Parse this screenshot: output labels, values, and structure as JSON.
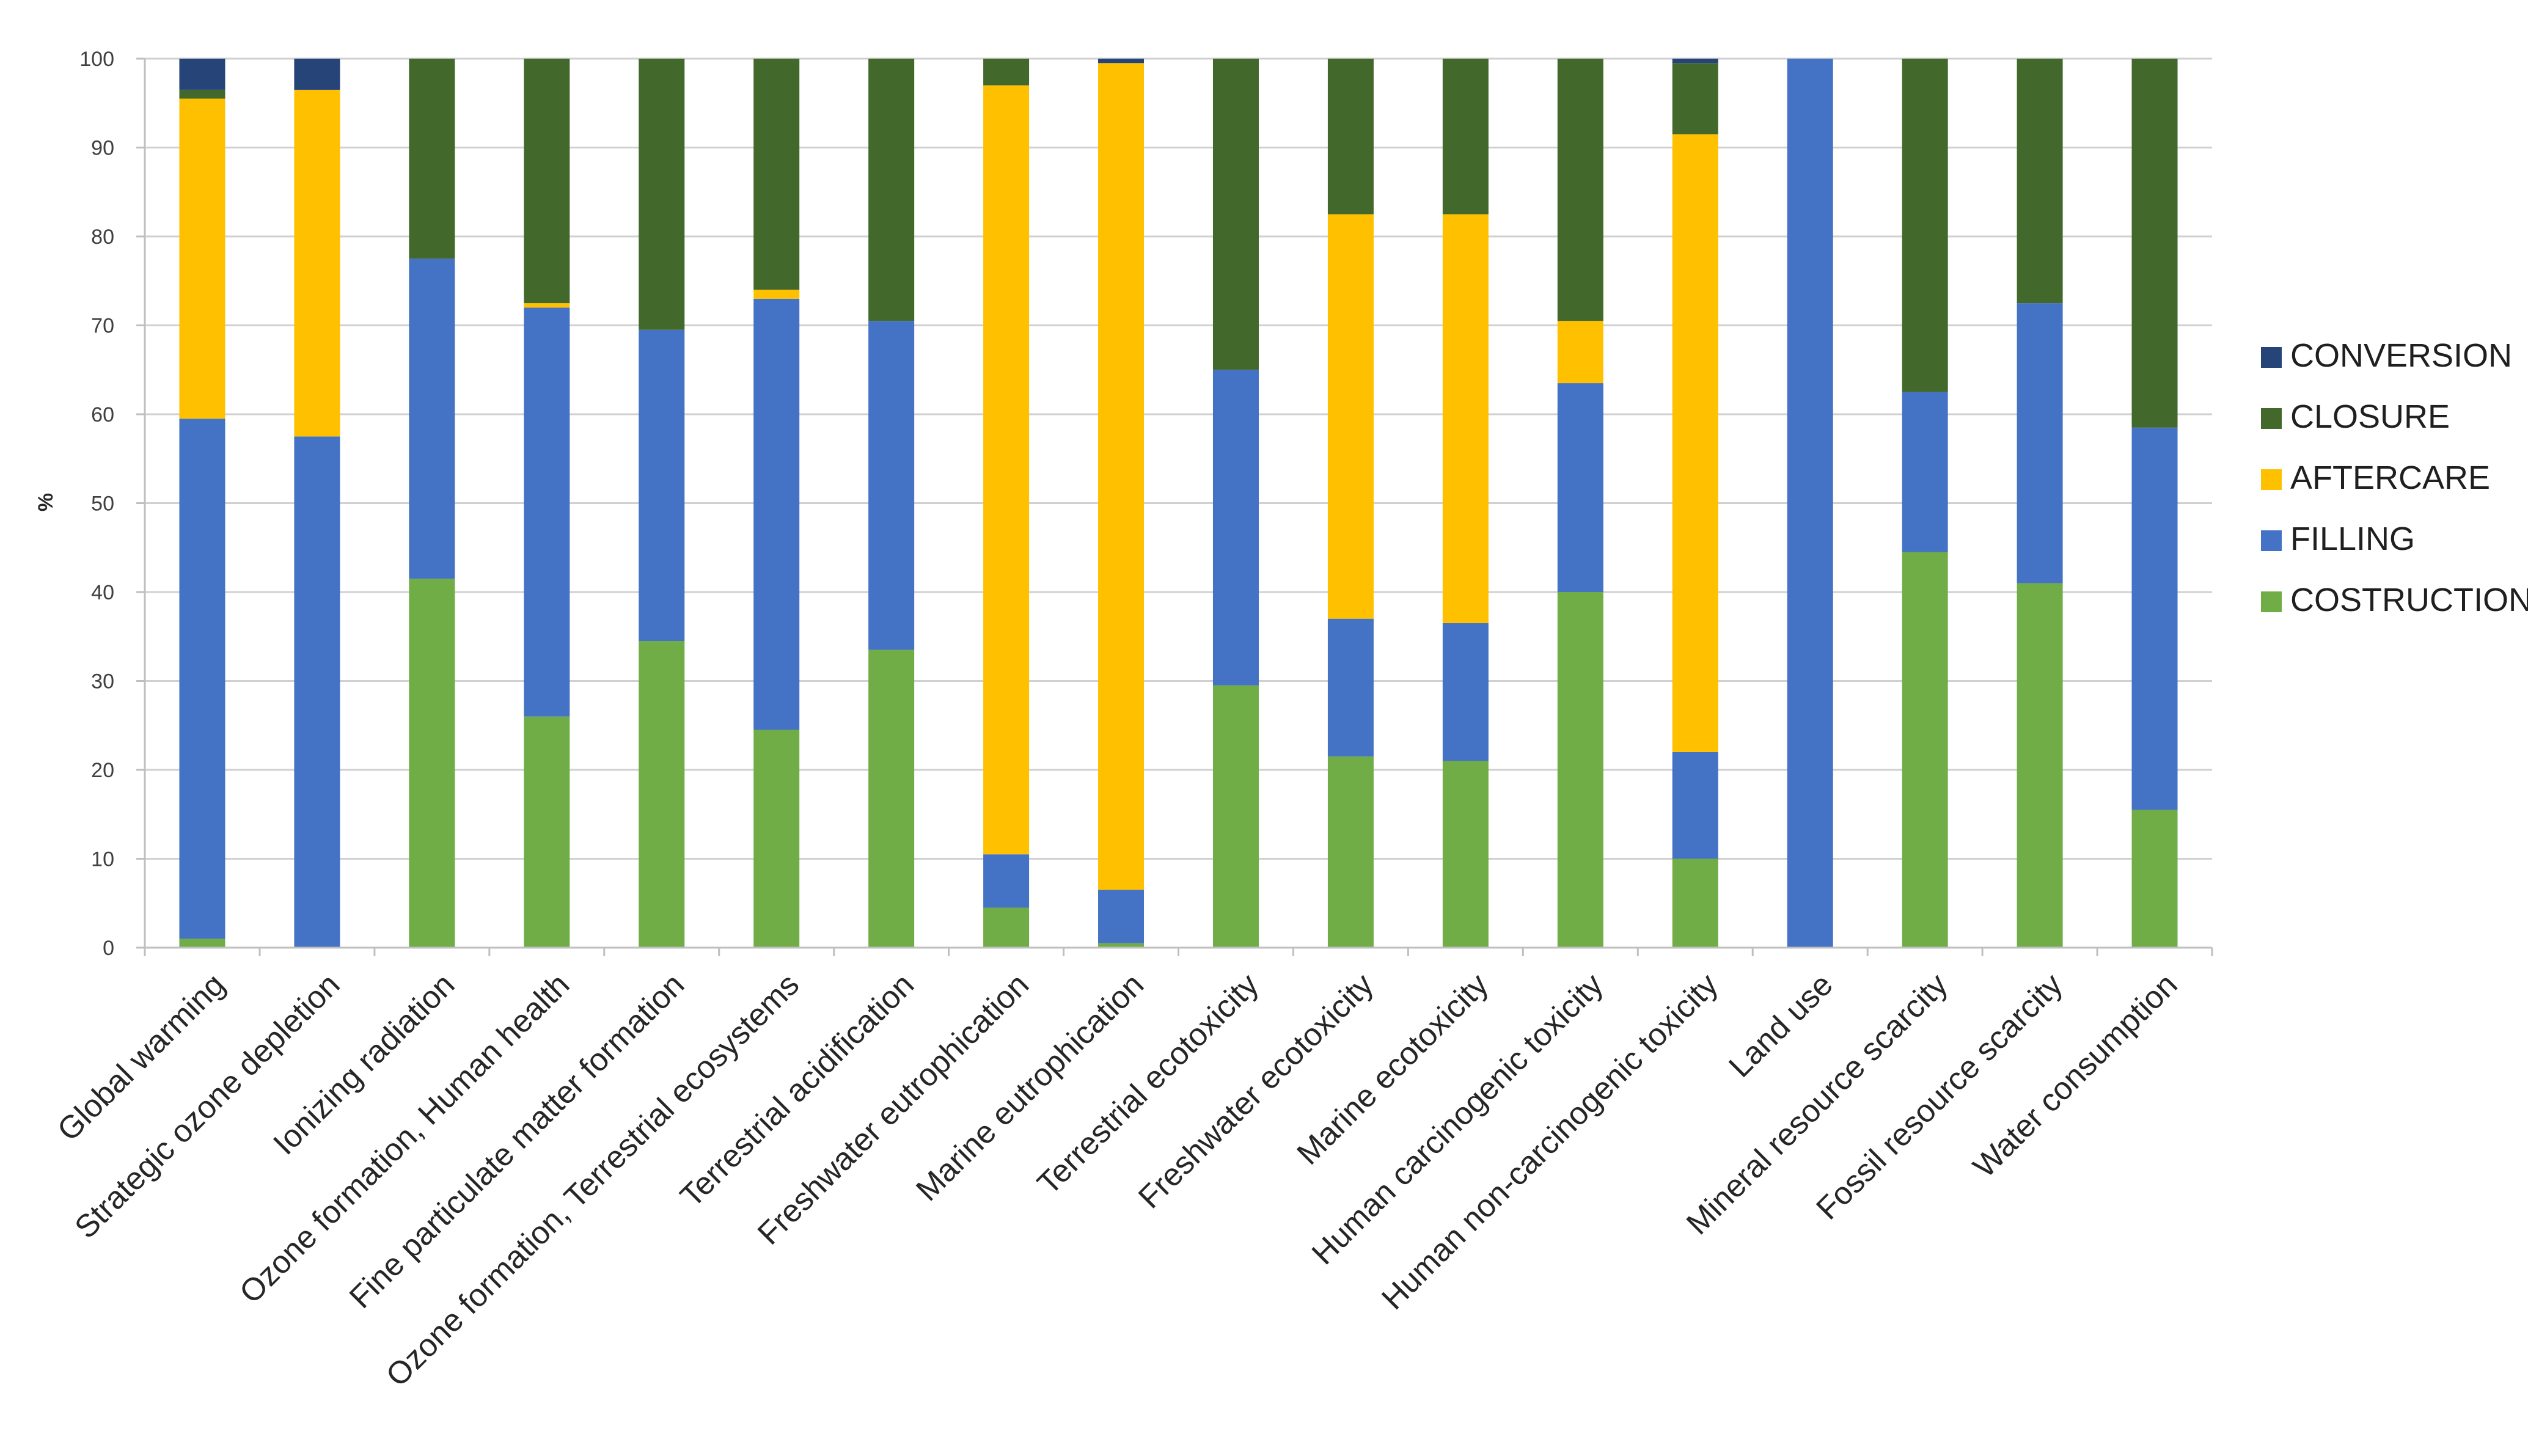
{
  "chart_data": {
    "type": "stacked-bar-100",
    "title": "",
    "xlabel": "",
    "ylabel": "%",
    "ylim": [
      0,
      100
    ],
    "yticks": [
      "0",
      "10",
      "20",
      "30",
      "40",
      "50",
      "60",
      "70",
      "80",
      "90",
      "100"
    ],
    "grid": true,
    "legend_position": "right",
    "categories": [
      "Global warming",
      "Strategic ozone depletion",
      "Ionizing radiation",
      "Ozone formation, Human health",
      "Fine particulate matter formation",
      "Ozone formation, Terrestrial ecosystems",
      "Terrestrial acidification",
      "Freshwater eutrophication",
      "Marine eutrophication",
      "Terrestrial ecotoxicity",
      "Freshwater ecotoxicity",
      "Marine ecotoxicity",
      "Human carcinogenic toxicity",
      "Human non-carcinogenic toxicity",
      "Land use",
      "Mineral resource scarcity",
      "Fossil resource scarcity",
      "Water consumption"
    ],
    "series": [
      {
        "name": "COSTRUCTION",
        "color": "#70AD47",
        "values": [
          1,
          0,
          41.5,
          26,
          34.5,
          24.5,
          33.5,
          4.5,
          0.5,
          29.5,
          21.5,
          21,
          40,
          10,
          0,
          44.5,
          41,
          15.5
        ]
      },
      {
        "name": "FILLING",
        "color": "#4472C4",
        "values": [
          58.5,
          57.5,
          36,
          46,
          35,
          48.5,
          37,
          6,
          6,
          35.5,
          15.5,
          15.5,
          23.5,
          12,
          100,
          18,
          31.5,
          43
        ]
      },
      {
        "name": "AFTERCARE",
        "color": "#FFC000",
        "values": [
          36,
          39,
          0,
          0.5,
          0,
          1,
          0,
          86.5,
          93,
          0,
          45.5,
          46,
          7,
          69.5,
          0,
          0,
          0,
          0
        ]
      },
      {
        "name": "CLOSURE",
        "color": "#43682B",
        "values": [
          1,
          0,
          22.5,
          27.5,
          30.5,
          26,
          29.5,
          3,
          0,
          35,
          17.5,
          17.5,
          29.5,
          8,
          0,
          37.5,
          27.5,
          41.5
        ]
      },
      {
        "name": "CONVERSION",
        "color": "#264478",
        "values": [
          3.5,
          3.5,
          0,
          0,
          0,
          0,
          0,
          0,
          0.5,
          0,
          0,
          0,
          0,
          0.5,
          0,
          0,
          0,
          0
        ]
      }
    ]
  }
}
